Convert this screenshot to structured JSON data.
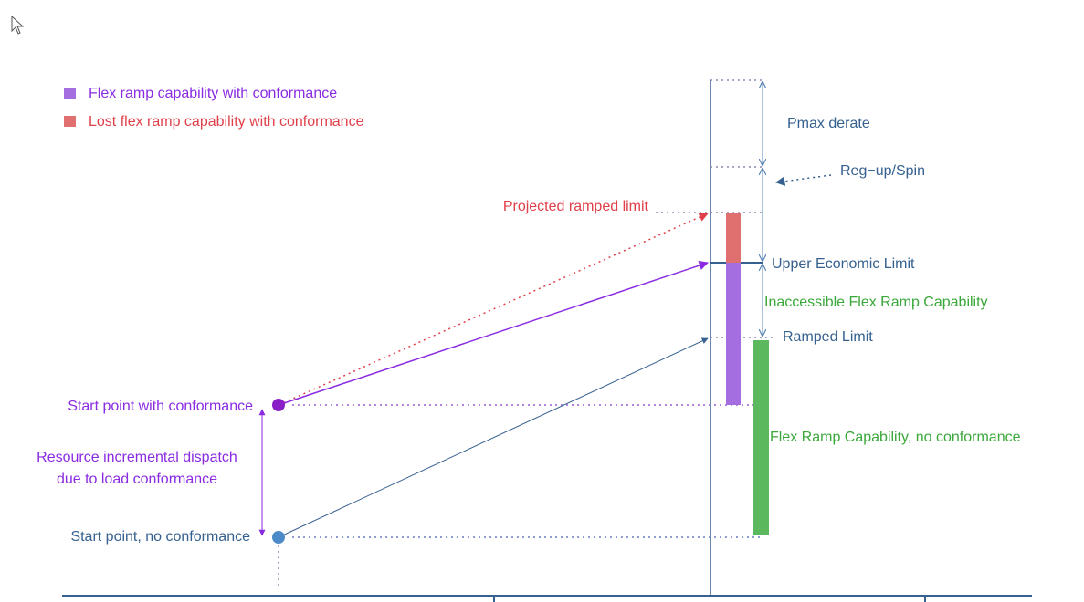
{
  "legend": {
    "items": [
      {
        "label": "Flex ramp capability with conformance"
      },
      {
        "label": "Lost flex ramp capability with conformance"
      }
    ]
  },
  "labels": {
    "pmax_derate": "Pmax derate",
    "reg_up_spin": "Reg−up/Spin",
    "projected_ramped_limit": "Projected ramped limit",
    "upper_economic_limit": "Upper Economic Limit",
    "inaccessible_flex_ramp": "Inaccessible Flex Ramp Capability",
    "ramped_limit": "Ramped Limit",
    "flex_ramp_no_conformance": "Flex Ramp Capability, no conformance",
    "start_with_conformance": "Start point with conformance",
    "incremental_dispatch": [
      "Resource incremental dispatch",
      "due to load conformance"
    ],
    "start_no_conformance": "Start point, no conformance"
  }
}
